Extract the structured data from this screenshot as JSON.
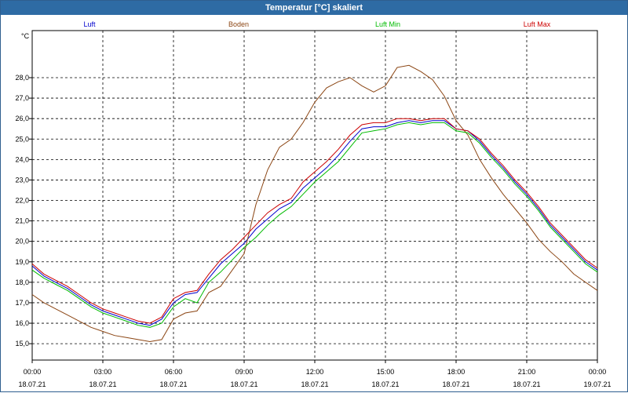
{
  "window": {
    "title": "Temperatur [°C] skaliert"
  },
  "chart_data": {
    "type": "line",
    "title": "Temperatur [°C] skaliert",
    "ylabel": "°C",
    "xlabel": "",
    "ylim": [
      14.2,
      30.3
    ],
    "yticks": [
      15.0,
      16.0,
      17.0,
      18.0,
      19.0,
      20.0,
      21.0,
      22.0,
      23.0,
      24.0,
      25.0,
      26.0,
      27.0,
      28.0
    ],
    "ytick_labels": [
      "15,0",
      "16,0",
      "17,0",
      "18,0",
      "19,0",
      "20,0",
      "21,0",
      "22,0",
      "23,0",
      "24,0",
      "25,0",
      "26,0",
      "27,0",
      "28,0"
    ],
    "xlim": [
      0,
      24
    ],
    "xticks": [
      {
        "hour": 0,
        "time": "00:00",
        "date": "18.07.21"
      },
      {
        "hour": 3,
        "time": "03:00",
        "date": "18.07.21"
      },
      {
        "hour": 6,
        "time": "06:00",
        "date": "18.07.21"
      },
      {
        "hour": 9,
        "time": "09:00",
        "date": "18.07.21"
      },
      {
        "hour": 12,
        "time": "12:00",
        "date": "18.07.21"
      },
      {
        "hour": 15,
        "time": "15:00",
        "date": "18.07.21"
      },
      {
        "hour": 18,
        "time": "18:00",
        "date": "18.07.21"
      },
      {
        "hour": 21,
        "time": "21:00",
        "date": "18.07.21"
      },
      {
        "hour": 24,
        "time": "00:00",
        "date": "19.07.21"
      }
    ],
    "grid": true,
    "series": [
      {
        "name": "Luft",
        "color": "#0000cc",
        "x": [
          0,
          0.5,
          1,
          1.5,
          2,
          2.5,
          3,
          3.5,
          4,
          4.5,
          5,
          5.5,
          6,
          6.5,
          7,
          7.5,
          8,
          8.5,
          9,
          9.5,
          10,
          10.5,
          11,
          11.5,
          12,
          12.5,
          13,
          13.5,
          14,
          14.5,
          15,
          15.5,
          16,
          16.5,
          17,
          17.5,
          18,
          18.5,
          19,
          19.5,
          20,
          20.5,
          21,
          21.5,
          22,
          22.5,
          23,
          23.5,
          24
        ],
        "y": [
          18.8,
          18.3,
          18.0,
          17.7,
          17.3,
          16.9,
          16.6,
          16.4,
          16.2,
          16.0,
          15.9,
          16.2,
          17.0,
          17.4,
          17.5,
          18.2,
          18.9,
          19.4,
          19.9,
          20.6,
          21.1,
          21.6,
          21.9,
          22.6,
          23.1,
          23.6,
          24.2,
          24.9,
          25.5,
          25.6,
          25.6,
          25.8,
          25.9,
          25.8,
          25.9,
          25.9,
          25.5,
          25.4,
          24.9,
          24.2,
          23.6,
          22.9,
          22.3,
          21.6,
          20.8,
          20.2,
          19.6,
          19.0,
          18.6
        ]
      },
      {
        "name": "Boden",
        "color": "#8b4513",
        "x": [
          0,
          0.5,
          1,
          1.5,
          2,
          2.5,
          3,
          3.5,
          4,
          4.5,
          5,
          5.5,
          6,
          6.5,
          7,
          7.5,
          8,
          8.5,
          9,
          9.5,
          10,
          10.5,
          11,
          11.5,
          12,
          12.5,
          13,
          13.5,
          14,
          14.5,
          15,
          15.5,
          16,
          16.5,
          17,
          17.5,
          18,
          18.5,
          19,
          19.5,
          20,
          20.5,
          21,
          21.5,
          22,
          22.5,
          23,
          23.5,
          24
        ],
        "y": [
          17.4,
          17.0,
          16.7,
          16.4,
          16.1,
          15.8,
          15.6,
          15.4,
          15.3,
          15.2,
          15.1,
          15.2,
          16.2,
          16.5,
          16.6,
          17.5,
          17.8,
          18.6,
          19.4,
          21.8,
          23.5,
          24.6,
          25.0,
          25.8,
          26.8,
          27.5,
          27.8,
          28.0,
          27.6,
          27.3,
          27.6,
          28.5,
          28.6,
          28.3,
          27.9,
          27.1,
          25.9,
          25.2,
          24.0,
          23.1,
          22.3,
          21.6,
          20.9,
          20.1,
          19.5,
          19.0,
          18.4,
          18.0,
          17.6
        ]
      },
      {
        "name": "Luft Min",
        "color": "#00bb00",
        "x": [
          0,
          0.5,
          1,
          1.5,
          2,
          2.5,
          3,
          3.5,
          4,
          4.5,
          5,
          5.5,
          6,
          6.5,
          7,
          7.5,
          8,
          8.5,
          9,
          9.5,
          10,
          10.5,
          11,
          11.5,
          12,
          12.5,
          13,
          13.5,
          14,
          14.5,
          15,
          15.5,
          16,
          16.5,
          17,
          17.5,
          18,
          18.5,
          19,
          19.5,
          20,
          20.5,
          21,
          21.5,
          22,
          22.5,
          23,
          23.5,
          24
        ],
        "y": [
          18.6,
          18.2,
          17.9,
          17.6,
          17.2,
          16.8,
          16.5,
          16.3,
          16.1,
          15.9,
          15.8,
          16.0,
          16.8,
          17.2,
          17.0,
          18.0,
          18.5,
          19.1,
          19.7,
          20.2,
          20.8,
          21.3,
          21.7,
          22.3,
          22.9,
          23.4,
          23.9,
          24.6,
          25.3,
          25.4,
          25.5,
          25.7,
          25.8,
          25.7,
          25.8,
          25.8,
          25.4,
          25.3,
          24.8,
          24.1,
          23.5,
          22.8,
          22.2,
          21.5,
          20.7,
          20.1,
          19.5,
          18.9,
          18.5
        ]
      },
      {
        "name": "Luft Max",
        "color": "#cc0000",
        "x": [
          0,
          0.5,
          1,
          1.5,
          2,
          2.5,
          3,
          3.5,
          4,
          4.5,
          5,
          5.5,
          6,
          6.5,
          7,
          7.5,
          8,
          8.5,
          9,
          9.5,
          10,
          10.5,
          11,
          11.5,
          12,
          12.5,
          13,
          13.5,
          14,
          14.5,
          15,
          15.5,
          16,
          16.5,
          17,
          17.5,
          18,
          18.5,
          19,
          19.5,
          20,
          20.5,
          21,
          21.5,
          22,
          22.5,
          23,
          23.5,
          24
        ],
        "y": [
          18.9,
          18.4,
          18.1,
          17.8,
          17.4,
          17.0,
          16.7,
          16.5,
          16.3,
          16.1,
          16.0,
          16.3,
          17.2,
          17.5,
          17.6,
          18.4,
          19.1,
          19.6,
          20.2,
          20.8,
          21.4,
          21.8,
          22.1,
          22.9,
          23.4,
          23.9,
          24.5,
          25.2,
          25.7,
          25.8,
          25.8,
          26.0,
          26.0,
          25.9,
          26.0,
          26.0,
          25.5,
          25.4,
          25.0,
          24.3,
          23.7,
          23.0,
          22.4,
          21.7,
          20.9,
          20.3,
          19.7,
          19.1,
          18.7
        ]
      }
    ]
  }
}
